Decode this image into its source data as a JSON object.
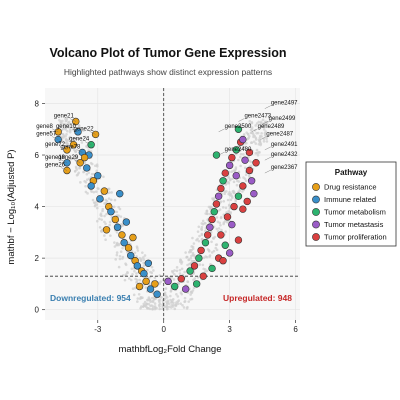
{
  "chart_data": {
    "type": "scatter",
    "title": "Volcano Plot of Tumor Gene Expression",
    "subtitle": "Highlighted pathways show distinct expression patterns",
    "xlabel": "mathbfLog₂Fold Change",
    "ylabel": "mathbf − Log₁₀(Adjusted P)",
    "xlim": [
      -5.4,
      6.2
    ],
    "ylim": [
      -0.4,
      8.6
    ],
    "x_ticks": [
      "-3",
      "0",
      "3",
      "6"
    ],
    "y_ticks": [
      "0",
      "2",
      "4",
      "6",
      "8"
    ],
    "thresholds": {
      "log2fc": 0,
      "neg_log10_p": 1.3
    },
    "grid": true,
    "legend_position": "right",
    "counts": {
      "down_label": "Downregulated: 954",
      "up_label": "Upregulated: 948"
    },
    "legend": {
      "title": "Pathway",
      "items": [
        {
          "name": "Drug resistance",
          "color": "#E69F1A"
        },
        {
          "name": "Immune related",
          "color": "#3A8FC9"
        },
        {
          "name": "Tumor metabolism",
          "color": "#2DB36F"
        },
        {
          "name": "Tumor metastasis",
          "color": "#9A5CC6"
        },
        {
          "name": "Tumor proliferation",
          "color": "#D94040"
        }
      ]
    },
    "down_color": "#3A7FB0",
    "up_color": "#C62828",
    "labeled_genes": [
      {
        "label": "gene21",
        "x": -4.0,
        "y": 7.3
      },
      {
        "label": "gene8",
        "x": -4.8,
        "y": 6.9
      },
      {
        "label": "gene10",
        "x": -3.9,
        "y": 6.9
      },
      {
        "label": "gene22",
        "x": -3.1,
        "y": 6.8
      },
      {
        "label": "gene57",
        "x": -4.8,
        "y": 6.6
      },
      {
        "label": "gene24",
        "x": -3.3,
        "y": 6.4
      },
      {
        "label": "gene72",
        "x": -4.4,
        "y": 6.2
      },
      {
        "label": "gene78",
        "x": -3.7,
        "y": 6.1
      },
      {
        "label": "gene18",
        "x": -4.4,
        "y": 5.7
      },
      {
        "label": "gene29",
        "x": -3.8,
        "y": 5.7
      },
      {
        "label": "gene26",
        "x": -4.4,
        "y": 5.4
      },
      {
        "label": "gene2497",
        "x": 4.6,
        "y": 7.8
      },
      {
        "label": "gene2473",
        "x": 3.4,
        "y": 7.3
      },
      {
        "label": "gene2499",
        "x": 4.5,
        "y": 7.2
      },
      {
        "label": "gene2500",
        "x": 2.5,
        "y": 6.9
      },
      {
        "label": "gene2489",
        "x": 4.0,
        "y": 6.9
      },
      {
        "label": "gene2487",
        "x": 4.4,
        "y": 6.6
      },
      {
        "label": "gene2491",
        "x": 4.6,
        "y": 6.2
      },
      {
        "label": "gene2480",
        "x": 2.5,
        "y": 6.0
      },
      {
        "label": "gene2432",
        "x": 4.6,
        "y": 5.8
      },
      {
        "label": "gene2367",
        "x": 4.6,
        "y": 5.3
      }
    ],
    "pathway_points": [
      {
        "x": -4.0,
        "y": 7.3,
        "p": 0
      },
      {
        "x": -4.8,
        "y": 6.9,
        "p": 0
      },
      {
        "x": -3.9,
        "y": 6.9,
        "p": 1
      },
      {
        "x": -3.1,
        "y": 6.8,
        "p": 0
      },
      {
        "x": -4.8,
        "y": 6.6,
        "p": 1
      },
      {
        "x": -3.3,
        "y": 6.4,
        "p": 2
      },
      {
        "x": -4.4,
        "y": 6.2,
        "p": 0
      },
      {
        "x": -3.7,
        "y": 6.1,
        "p": 1
      },
      {
        "x": -4.4,
        "y": 5.7,
        "p": 1
      },
      {
        "x": -3.8,
        "y": 5.7,
        "p": 0
      },
      {
        "x": -4.4,
        "y": 5.4,
        "p": 0
      },
      {
        "x": -3.4,
        "y": 6.0,
        "p": 1
      },
      {
        "x": -3.6,
        "y": 5.9,
        "p": 0
      },
      {
        "x": -4.1,
        "y": 6.4,
        "p": 0
      },
      {
        "x": -3.5,
        "y": 5.5,
        "p": 1
      },
      {
        "x": -3.0,
        "y": 5.2,
        "p": 1
      },
      {
        "x": -3.2,
        "y": 5.0,
        "p": 0
      },
      {
        "x": -2.7,
        "y": 4.6,
        "p": 0
      },
      {
        "x": -2.9,
        "y": 4.3,
        "p": 1
      },
      {
        "x": -2.5,
        "y": 4.0,
        "p": 0
      },
      {
        "x": -2.4,
        "y": 3.8,
        "p": 1
      },
      {
        "x": -2.2,
        "y": 3.5,
        "p": 0
      },
      {
        "x": -2.1,
        "y": 3.2,
        "p": 1
      },
      {
        "x": -1.9,
        "y": 2.9,
        "p": 0
      },
      {
        "x": -1.8,
        "y": 2.6,
        "p": 1
      },
      {
        "x": -1.6,
        "y": 2.4,
        "p": 0
      },
      {
        "x": -1.5,
        "y": 2.1,
        "p": 1
      },
      {
        "x": -1.3,
        "y": 1.9,
        "p": 0
      },
      {
        "x": -1.2,
        "y": 1.7,
        "p": 1
      },
      {
        "x": -1.0,
        "y": 1.5,
        "p": 0
      },
      {
        "x": -0.9,
        "y": 1.4,
        "p": 1
      },
      {
        "x": -0.8,
        "y": 1.1,
        "p": 0
      },
      {
        "x": -0.6,
        "y": 0.8,
        "p": 1
      },
      {
        "x": -0.4,
        "y": 1.0,
        "p": 0
      },
      {
        "x": -0.3,
        "y": 0.6,
        "p": 1
      },
      {
        "x": -1.1,
        "y": 0.9,
        "p": 0
      },
      {
        "x": -2.0,
        "y": 4.5,
        "p": 1
      },
      {
        "x": -2.6,
        "y": 3.1,
        "p": 0
      },
      {
        "x": -1.7,
        "y": 3.4,
        "p": 1
      },
      {
        "x": -3.3,
        "y": 4.8,
        "p": 1
      },
      {
        "x": -1.4,
        "y": 2.8,
        "p": 0
      },
      {
        "x": -0.7,
        "y": 1.8,
        "p": 1
      },
      {
        "x": 0.2,
        "y": 1.1,
        "p": 3
      },
      {
        "x": 0.5,
        "y": 0.9,
        "p": 2
      },
      {
        "x": 0.8,
        "y": 1.2,
        "p": 4
      },
      {
        "x": 1.0,
        "y": 0.8,
        "p": 3
      },
      {
        "x": 1.2,
        "y": 1.5,
        "p": 2
      },
      {
        "x": 1.4,
        "y": 1.7,
        "p": 4
      },
      {
        "x": 1.6,
        "y": 2.0,
        "p": 2
      },
      {
        "x": 1.7,
        "y": 2.3,
        "p": 4
      },
      {
        "x": 1.9,
        "y": 2.6,
        "p": 2
      },
      {
        "x": 2.0,
        "y": 2.9,
        "p": 4
      },
      {
        "x": 2.1,
        "y": 3.2,
        "p": 3
      },
      {
        "x": 2.2,
        "y": 3.5,
        "p": 4
      },
      {
        "x": 2.3,
        "y": 3.8,
        "p": 2
      },
      {
        "x": 2.4,
        "y": 4.1,
        "p": 4
      },
      {
        "x": 2.5,
        "y": 4.4,
        "p": 3
      },
      {
        "x": 2.6,
        "y": 4.7,
        "p": 4
      },
      {
        "x": 2.7,
        "y": 5.0,
        "p": 2
      },
      {
        "x": 2.8,
        "y": 5.3,
        "p": 4
      },
      {
        "x": 3.0,
        "y": 5.6,
        "p": 3
      },
      {
        "x": 3.1,
        "y": 5.9,
        "p": 4
      },
      {
        "x": 3.3,
        "y": 6.2,
        "p": 2
      },
      {
        "x": 3.5,
        "y": 6.5,
        "p": 4
      },
      {
        "x": 3.7,
        "y": 5.8,
        "p": 3
      },
      {
        "x": 3.9,
        "y": 5.4,
        "p": 4
      },
      {
        "x": 4.0,
        "y": 5.0,
        "p": 3
      },
      {
        "x": 3.6,
        "y": 4.8,
        "p": 4
      },
      {
        "x": 3.4,
        "y": 4.4,
        "p": 2
      },
      {
        "x": 3.8,
        "y": 4.2,
        "p": 4
      },
      {
        "x": 3.2,
        "y": 4.0,
        "p": 4
      },
      {
        "x": 2.9,
        "y": 3.6,
        "p": 4
      },
      {
        "x": 3.1,
        "y": 3.3,
        "p": 3
      },
      {
        "x": 2.6,
        "y": 2.9,
        "p": 4
      },
      {
        "x": 2.8,
        "y": 2.5,
        "p": 2
      },
      {
        "x": 3.4,
        "y": 2.7,
        "p": 4
      },
      {
        "x": 3.0,
        "y": 2.2,
        "p": 3
      },
      {
        "x": 2.5,
        "y": 2.0,
        "p": 4
      },
      {
        "x": 3.6,
        "y": 3.9,
        "p": 4
      },
      {
        "x": 4.1,
        "y": 4.5,
        "p": 3
      },
      {
        "x": 3.9,
        "y": 6.1,
        "p": 4
      },
      {
        "x": 3.6,
        "y": 6.6,
        "p": 3
      },
      {
        "x": 4.2,
        "y": 5.7,
        "p": 4
      },
      {
        "x": 3.3,
        "y": 5.2,
        "p": 3
      },
      {
        "x": 2.4,
        "y": 6.0,
        "p": 2
      },
      {
        "x": 3.4,
        "y": 7.0,
        "p": 2
      },
      {
        "x": 1.8,
        "y": 1.3,
        "p": 4
      },
      {
        "x": 2.2,
        "y": 1.6,
        "p": 2
      },
      {
        "x": 2.7,
        "y": 1.9,
        "p": 4
      },
      {
        "x": 1.5,
        "y": 1.0,
        "p": 2
      }
    ]
  }
}
